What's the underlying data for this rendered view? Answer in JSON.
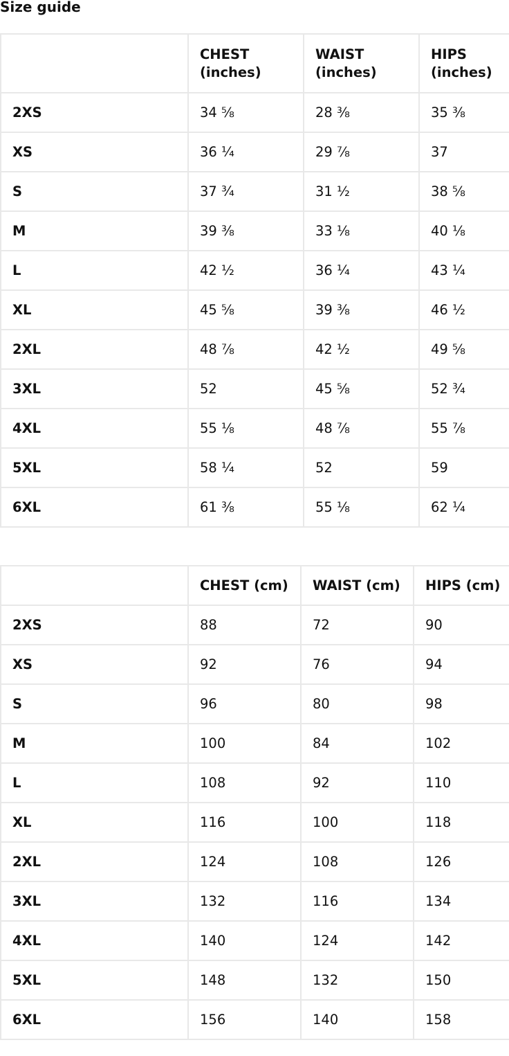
{
  "title": "Size guide",
  "tables": [
    {
      "headers": [
        "",
        "CHEST (inches)",
        "WAIST (inches)",
        "HIPS (inches)"
      ],
      "rows": [
        [
          "2XS",
          "34 ⅝",
          "28 ⅜",
          "35 ⅜"
        ],
        [
          "XS",
          "36 ¼",
          "29 ⅞",
          "37"
        ],
        [
          "S",
          "37 ¾",
          "31 ½",
          "38 ⅝"
        ],
        [
          "M",
          "39 ⅜",
          "33 ⅛",
          "40 ⅛"
        ],
        [
          "L",
          "42 ½",
          "36 ¼",
          "43 ¼"
        ],
        [
          "XL",
          "45 ⅝",
          "39 ⅜",
          "46 ½"
        ],
        [
          "2XL",
          "48 ⅞",
          "42 ½",
          "49 ⅝"
        ],
        [
          "3XL",
          "52",
          "45 ⅝",
          "52 ¾"
        ],
        [
          "4XL",
          "55 ⅛",
          "48 ⅞",
          "55 ⅞"
        ],
        [
          "5XL",
          "58 ¼",
          "52",
          "59"
        ],
        [
          "6XL",
          "61 ⅜",
          "55 ⅛",
          "62 ¼"
        ]
      ]
    },
    {
      "headers": [
        "",
        "CHEST (cm)",
        "WAIST (cm)",
        "HIPS (cm)"
      ],
      "rows": [
        [
          "2XS",
          "88",
          "72",
          "90"
        ],
        [
          "XS",
          "92",
          "76",
          "94"
        ],
        [
          "S",
          "96",
          "80",
          "98"
        ],
        [
          "M",
          "100",
          "84",
          "102"
        ],
        [
          "L",
          "108",
          "92",
          "110"
        ],
        [
          "XL",
          "116",
          "100",
          "118"
        ],
        [
          "2XL",
          "124",
          "108",
          "126"
        ],
        [
          "3XL",
          "132",
          "116",
          "134"
        ],
        [
          "4XL",
          "140",
          "124",
          "142"
        ],
        [
          "5XL",
          "148",
          "132",
          "150"
        ],
        [
          "6XL",
          "156",
          "140",
          "158"
        ]
      ]
    }
  ]
}
